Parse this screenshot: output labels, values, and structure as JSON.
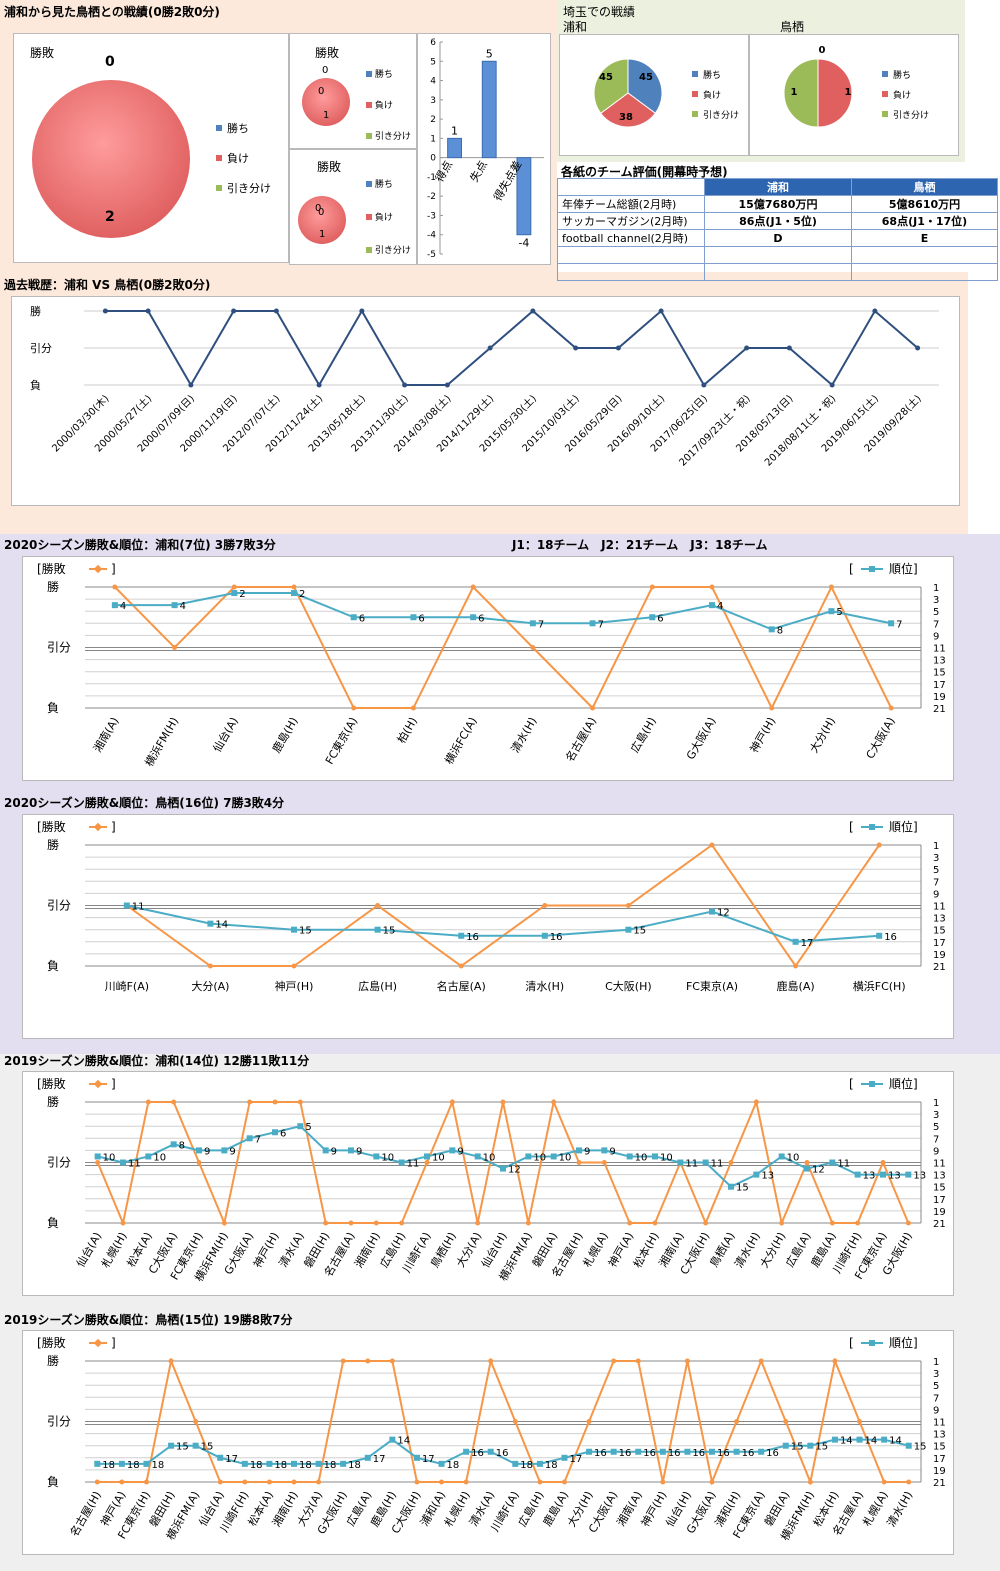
{
  "colors": {
    "win": "#4f81bd",
    "loss": "#e06060",
    "draw": "#9bbb59",
    "line": "#2f4f7f",
    "result": "#f79646",
    "rank": "#4bacc6"
  },
  "summary": {
    "title": "浦和から見た鳥栖との戦績(0勝2敗0分)",
    "pie_title": "勝敗",
    "win_count": "0",
    "loss_count": "2",
    "legend": [
      "勝ち",
      "負け",
      "引き分け"
    ],
    "mini1": {
      "title": "勝敗",
      "top": "0",
      "mid": "0",
      "bot": "1"
    },
    "mini2": {
      "title": "勝敗",
      "top": "0",
      "mid": "0",
      "bot": "1"
    }
  },
  "bars": {
    "categories": [
      "得点",
      "失点",
      "得失点差"
    ],
    "values": [
      1,
      5,
      -4
    ],
    "labels": [
      "1",
      "5",
      "-4"
    ],
    "ticks": [
      "6",
      "5",
      "4",
      "3",
      "2",
      "1",
      "0",
      "-1",
      "-2",
      "-3",
      "-4",
      "-5"
    ]
  },
  "saitama": {
    "title": "埼玉での戦績",
    "left_name": "浦和",
    "right_name": "鳥栖",
    "left_pie": {
      "win": 45,
      "loss": 38,
      "draw": 45,
      "win_label": "45",
      "loss_label": "38",
      "draw_label": "45"
    },
    "right_pie": {
      "win": 0,
      "loss": 1,
      "draw": 1,
      "win_label": "0",
      "loss_label": "1",
      "draw_label": "1"
    },
    "legend": [
      "勝ち",
      "負け",
      "引き分け"
    ]
  },
  "eval": {
    "title": "各紙のチーム評価(開幕時予想)",
    "header": [
      "浦和",
      "鳥栖"
    ],
    "rows": [
      [
        "年俸チーム総額(2月時)",
        "15億7680万円",
        "5億8610万円"
      ],
      [
        "サッカーマガジン(2月時)",
        "86点(J1・5位)",
        "68点(J1・17位)"
      ],
      [
        "football channel(2月時)",
        "D",
        "E"
      ],
      [
        "",
        "",
        ""
      ],
      [
        "",
        "",
        ""
      ]
    ]
  },
  "history": {
    "title": "過去戦歴：浦和 VS 鳥栖(0勝2敗0分)",
    "ylabels": [
      "勝",
      "引分",
      "負"
    ],
    "dates": [
      "2000/03/30(木)",
      "2000/05/27(土)",
      "2000/07/09(日)",
      "2000/11/19(日)",
      "2012/07/07(土)",
      "2012/11/24(土)",
      "2013/05/18(土)",
      "2013/11/30(土)",
      "2014/03/08(土)",
      "2014/11/29(土)",
      "2015/05/30(土)",
      "2015/10/03(土)",
      "2016/05/29(日)",
      "2016/09/10(土)",
      "2017/06/25(日)",
      "2017/09/23(土・祝)",
      "2018/05/13(日)",
      "2018/08/11(土・祝)",
      "2019/06/15(土)",
      "2019/09/28(土)"
    ],
    "results": [
      2,
      2,
      0,
      2,
      2,
      0,
      2,
      0,
      0,
      1,
      2,
      1,
      1,
      2,
      0,
      1,
      1,
      0,
      2,
      1
    ]
  },
  "s2020u": {
    "title": "2020シーズン勝敗&順位：浦和(7位) 3勝7敗3分",
    "extra": "J1：18チーム　J2：21チーム　J3：18チーム"
  },
  "s2020t": {
    "title": "2020シーズン勝敗&順位：鳥栖(16位) 7勝3敗4分"
  },
  "s2019u": {
    "title": "2019シーズン勝敗&順位：浦和(14位) 12勝11敗11分"
  },
  "s2019t": {
    "title": "2019シーズン勝敗&順位：鳥栖(15位) 19勝8敗7分"
  },
  "combo_common": {
    "result_legend": "勝敗",
    "rank_legend": "順位",
    "ylabels": [
      "勝",
      "引分",
      "負"
    ],
    "rank_ticks": [
      "1",
      "3",
      "5",
      "7",
      "9",
      "11",
      "13",
      "15",
      "17",
      "19",
      "21"
    ]
  },
  "chart_data": [
    {
      "type": "bar",
      "title": "",
      "categories": [
        "得点",
        "失点",
        "得失点差"
      ],
      "values": [
        1,
        5,
        -4
      ],
      "ylim": [
        -5,
        6
      ]
    },
    {
      "type": "line",
      "title": "過去戦歴：浦和 VS 鳥栖(0勝2敗0分)",
      "x": [
        "2000/03/30(木)",
        "2000/05/27(土)",
        "2000/07/09(日)",
        "2000/11/19(日)",
        "2012/07/07(土)",
        "2012/11/24(土)",
        "2013/05/18(土)",
        "2013/11/30(土)",
        "2014/03/08(土)",
        "2014/11/29(土)",
        "2015/05/30(土)",
        "2015/10/03(土)",
        "2016/05/29(日)",
        "2016/09/10(土)",
        "2017/06/25(日)",
        "2017/09/23(土・祝)",
        "2018/05/13(日)",
        "2018/08/11(土・祝)",
        "2019/06/15(土)",
        "2019/09/28(土)"
      ],
      "values": [
        2,
        2,
        0,
        2,
        2,
        0,
        2,
        0,
        0,
        1,
        2,
        1,
        1,
        2,
        0,
        1,
        1,
        0,
        2,
        1
      ]
    },
    {
      "type": "line",
      "title": "2020シーズン勝敗&順位：浦和(7位) 3勝7敗3分",
      "categories": [
        "湘南(A)",
        "横浜FM(H)",
        "仙台(A)",
        "鹿島(H)",
        "FC東京(A)",
        "柏(H)",
        "横浜FC(A)",
        "清水(H)",
        "名古屋(A)",
        "広島(H)",
        "G大阪(A)",
        "神戸(H)",
        "大分(H)",
        "C大阪(A)"
      ],
      "series": [
        {
          "name": "勝敗",
          "values": [
            2,
            1,
            2,
            2,
            0,
            0,
            2,
            1,
            0,
            2,
            2,
            0,
            2,
            0
          ]
        },
        {
          "name": "順位",
          "values": [
            4,
            4,
            2,
            2,
            6,
            6,
            6,
            7,
            7,
            6,
            4,
            8,
            5,
            7
          ]
        }
      ]
    },
    {
      "type": "line",
      "title": "2020シーズン勝敗&順位：鳥栖(16位) 7勝3敗4分",
      "categories": [
        "川崎F(A)",
        "大分(A)",
        "神戸(H)",
        "広島(H)",
        "名古屋(A)",
        "清水(H)",
        "C大阪(H)",
        "FC東京(A)",
        "鹿島(A)",
        "横浜FC(H)"
      ],
      "series": [
        {
          "name": "勝敗",
          "values": [
            1,
            0,
            0,
            1,
            0,
            1,
            1,
            2,
            0,
            2
          ]
        },
        {
          "name": "順位",
          "values": [
            11,
            14,
            15,
            15,
            16,
            16,
            15,
            12,
            17,
            16
          ]
        }
      ]
    },
    {
      "type": "line",
      "title": "2019シーズン勝敗&順位：浦和(14位) 12勝11敗11分",
      "categories": [
        "仙台(A)",
        "札幌(H)",
        "松本(A)",
        "C大阪(A)",
        "FC東京(H)",
        "横浜FM(H)",
        "G大阪(A)",
        "神戸(H)",
        "清水(A)",
        "磐田(H)",
        "名古屋(A)",
        "湘南(H)",
        "広島(H)",
        "川崎F(A)",
        "鳥栖(H)",
        "大分(A)",
        "仙台(H)",
        "横浜FM(A)",
        "磐田(A)",
        "名古屋(H)",
        "札幌(A)",
        "神戸(A)",
        "松本(H)",
        "湘南(A)",
        "C大阪(H)",
        "鳥栖(A)",
        "清水(H)",
        "大分(H)",
        "広島(A)",
        "鹿島(A)",
        "川崎F(H)",
        "FC東京(A)",
        "G大阪(H)"
      ],
      "series": [
        {
          "name": "勝敗",
          "values": [
            1,
            0,
            2,
            2,
            1,
            0,
            2,
            2,
            2,
            0,
            0,
            0,
            0,
            1,
            2,
            0,
            2,
            0,
            2,
            1,
            1,
            0,
            0,
            1,
            0,
            1,
            2,
            0,
            1,
            0,
            0,
            1,
            0
          ]
        },
        {
          "name": "順位",
          "values": [
            10,
            11,
            10,
            8,
            9,
            9,
            7,
            6,
            5,
            9,
            9,
            10,
            11,
            10,
            9,
            10,
            12,
            10,
            10,
            9,
            9,
            10,
            10,
            11,
            11,
            15,
            13,
            10,
            12,
            11,
            13,
            13,
            13
          ]
        }
      ]
    },
    {
      "type": "line",
      "title": "2019シーズン勝敗&順位：鳥栖(15位) 19勝8敗7分",
      "categories": [
        "名古屋(H)",
        "神戸(A)",
        "FC東京(H)",
        "磐田(H)",
        "横浜FM(A)",
        "仙台(A)",
        "川崎F(H)",
        "松本(A)",
        "湘南(H)",
        "大分(A)",
        "G大阪(H)",
        "広島(A)",
        "鹿島(H)",
        "C大阪(H)",
        "浦和(A)",
        "札幌(H)",
        "清水(A)",
        "川崎F(A)",
        "広島(H)",
        "鹿島(A)",
        "大分(H)",
        "C大阪(A)",
        "湘南(A)",
        "神戸(H)",
        "仙台(H)",
        "G大阪(A)",
        "浦和(H)",
        "FC東京(A)",
        "磐田(A)",
        "横浜FM(H)",
        "松本(H)",
        "名古屋(A)",
        "札幌(A)",
        "清水(H)"
      ],
      "series": [
        {
          "name": "勝敗",
          "values": [
            0,
            0,
            0,
            2,
            1,
            0,
            0,
            0,
            0,
            0,
            2,
            2,
            2,
            0,
            0,
            0,
            2,
            1,
            0,
            0,
            1,
            2,
            2,
            0,
            2,
            0,
            1,
            2,
            1,
            0,
            2,
            1,
            0,
            0
          ]
        },
        {
          "name": "順位",
          "values": [
            18,
            18,
            18,
            15,
            15,
            17,
            18,
            18,
            18,
            18,
            18,
            17,
            14,
            17,
            18,
            16,
            16,
            18,
            18,
            17,
            16,
            16,
            16,
            16,
            16,
            16,
            16,
            16,
            15,
            15,
            14,
            14,
            14,
            15
          ]
        }
      ]
    }
  ]
}
